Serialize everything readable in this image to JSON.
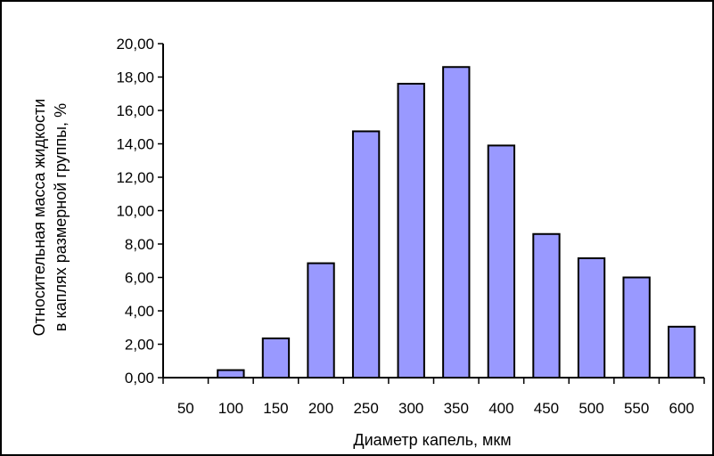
{
  "chart_data": {
    "type": "bar",
    "categories": [
      "50",
      "100",
      "150",
      "200",
      "250",
      "300",
      "350",
      "400",
      "450",
      "500",
      "550",
      "600"
    ],
    "values": [
      0.0,
      0.45,
      2.35,
      6.85,
      14.75,
      17.6,
      18.6,
      13.9,
      8.6,
      7.15,
      6.0,
      3.05
    ],
    "xlabel": "Диаметр капель, мкм",
    "ylabel_lines": [
      "Относительная масса жидкости",
      "в каплях  размерной группы, %"
    ],
    "ylim": [
      0,
      20
    ],
    "yticks": [
      "0,00",
      "2,00",
      "4,00",
      "6,00",
      "8,00",
      "10,00",
      "12,00",
      "14,00",
      "16,00",
      "18,00",
      "20,00"
    ],
    "grid": false,
    "legend": "none",
    "colors": {
      "bar_fill": "#9999ff",
      "bar_stroke": "#000000",
      "axis": "#000000"
    }
  }
}
